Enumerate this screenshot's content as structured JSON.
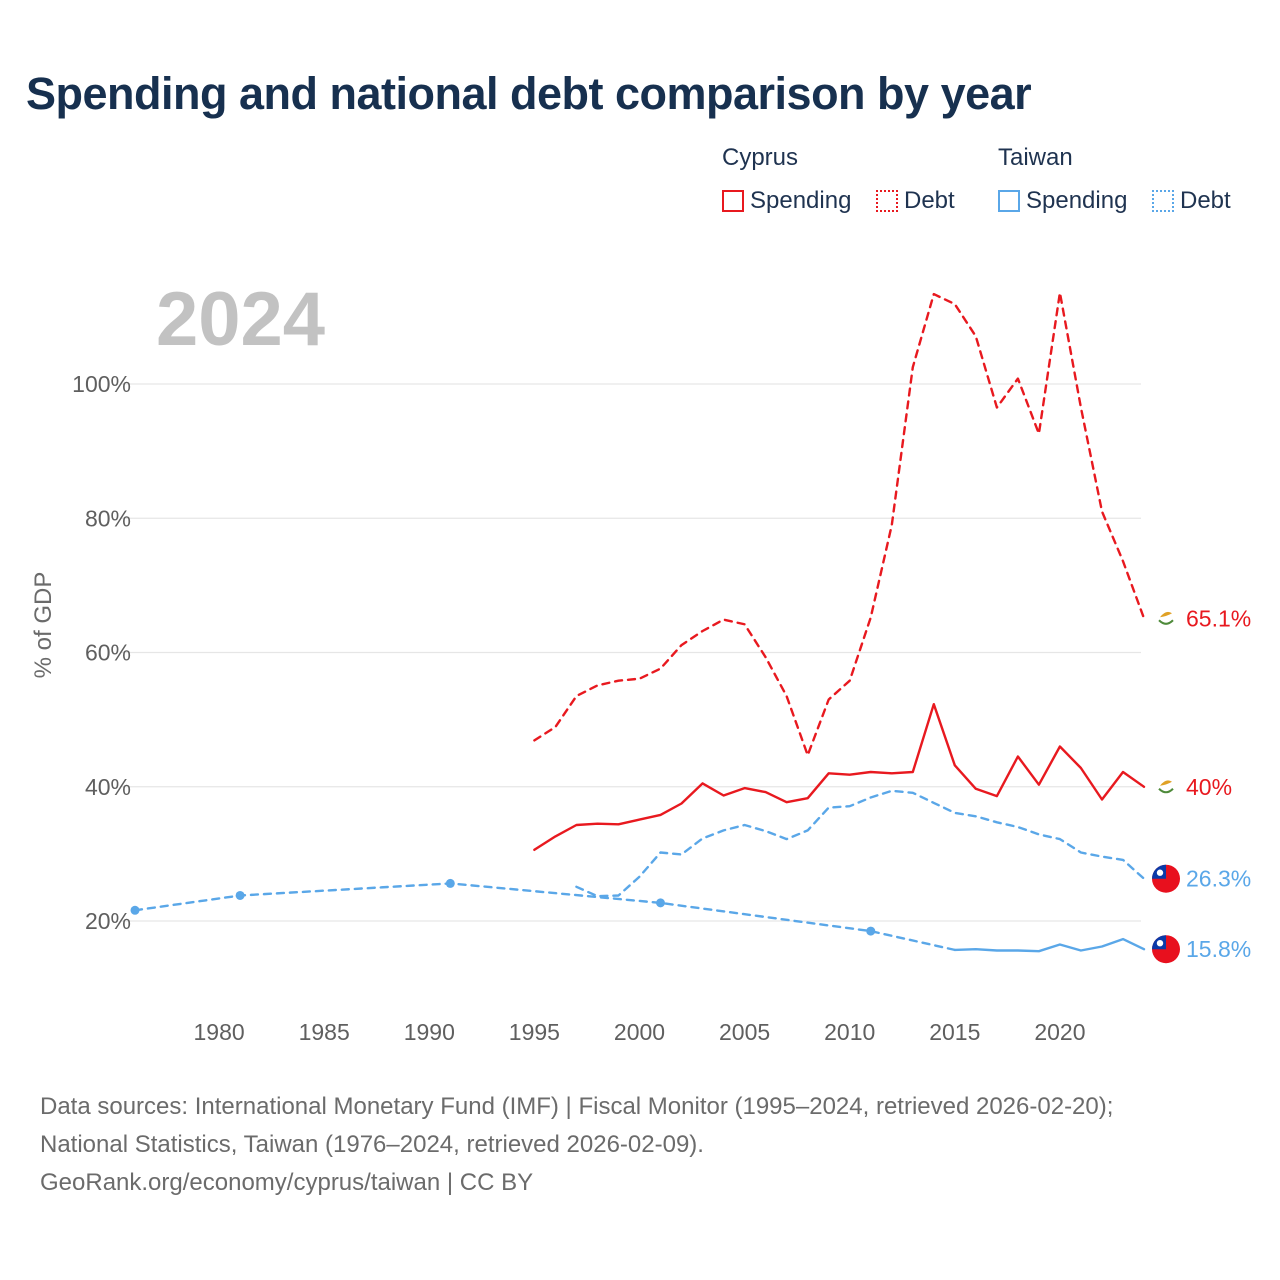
{
  "title": "Spending and national debt comparison by year",
  "year_overlay": "2024",
  "legend": {
    "groups": [
      {
        "name": "Cyprus",
        "items": [
          {
            "label": "Spending",
            "style": "solid"
          },
          {
            "label": "Debt",
            "style": "dotted"
          }
        ],
        "color": "#e8191f"
      },
      {
        "name": "Taiwan",
        "items": [
          {
            "label": "Spending",
            "style": "solid"
          },
          {
            "label": "Debt",
            "style": "dotted"
          }
        ],
        "color": "#5aa7e8"
      }
    ]
  },
  "sources": {
    "line1": "Data sources: International Monetary Fund (IMF) | Fiscal Monitor (1995–2024, retrieved 2026-02-20);",
    "line2": "National Statistics, Taiwan (1976–2024, retrieved 2026-02-09).",
    "line3": "GeoRank.org/economy/cyprus/taiwan | CC BY"
  },
  "chart_data": {
    "type": "line",
    "title": "Spending and national debt comparison by year",
    "xlabel": "",
    "ylabel": "% of GDP",
    "xlim": [
      1976,
      2024
    ],
    "ylim": [
      10,
      115
    ],
    "x_ticks": [
      1980,
      1985,
      1990,
      1995,
      2000,
      2005,
      2010,
      2015,
      2020
    ],
    "y_ticks": [
      20,
      40,
      60,
      80,
      100
    ],
    "y_tick_labels": [
      "20%",
      "40%",
      "60%",
      "80%",
      "100%"
    ],
    "grid": "horizontal",
    "series": [
      {
        "name": "Cyprus Debt",
        "color": "#e8191f",
        "dash": "dashed",
        "x": [
          1995,
          1996,
          1997,
          1998,
          1999,
          2000,
          2001,
          2002,
          2003,
          2004,
          2005,
          2006,
          2007,
          2008,
          2009,
          2010,
          2011,
          2012,
          2013,
          2014,
          2015,
          2016,
          2017,
          2018,
          2019,
          2020,
          2021,
          2022,
          2023,
          2024
        ],
        "y": [
          46.9,
          48.9,
          53.5,
          55.1,
          55.8,
          56.1,
          57.6,
          61.1,
          63.2,
          64.9,
          64.2,
          59.3,
          53.5,
          44.7,
          53.0,
          55.8,
          65.2,
          79.0,
          102.5,
          113.4,
          111.9,
          107.1,
          96.5,
          100.8,
          92.6,
          113.6,
          96.5,
          81.0,
          73.6,
          65.1
        ],
        "end_label": "65.1%",
        "flag": "cyprus"
      },
      {
        "name": "Cyprus Spending",
        "color": "#e8191f",
        "dash": "solid",
        "x": [
          1995,
          1996,
          1997,
          1998,
          1999,
          2000,
          2001,
          2002,
          2003,
          2004,
          2005,
          2006,
          2007,
          2008,
          2009,
          2010,
          2011,
          2012,
          2013,
          2014,
          2015,
          2016,
          2017,
          2018,
          2019,
          2020,
          2021,
          2022,
          2023,
          2024
        ],
        "y": [
          30.6,
          32.6,
          34.3,
          34.5,
          34.4,
          35.1,
          35.8,
          37.5,
          40.5,
          38.7,
          39.8,
          39.2,
          37.7,
          38.3,
          42.0,
          41.8,
          42.2,
          42.0,
          42.2,
          52.3,
          43.2,
          39.7,
          38.6,
          44.5,
          40.3,
          46.0,
          42.8,
          38.1,
          42.2,
          40.0
        ],
        "end_label": "40%",
        "flag": "cyprus"
      },
      {
        "name": "Taiwan Debt",
        "color": "#5aa7e8",
        "dash": "dashed",
        "x": [
          1997,
          1998,
          1999,
          2000,
          2001,
          2002,
          2003,
          2004,
          2005,
          2006,
          2007,
          2008,
          2009,
          2010,
          2011,
          2012,
          2013,
          2014,
          2015,
          2016,
          2017,
          2018,
          2019,
          2020,
          2021,
          2022,
          2023,
          2024
        ],
        "y": [
          25.1,
          23.7,
          23.8,
          26.6,
          30.2,
          29.9,
          32.3,
          33.5,
          34.3,
          33.4,
          32.2,
          33.5,
          36.9,
          37.1,
          38.4,
          39.4,
          39.1,
          37.6,
          36.1,
          35.6,
          34.7,
          34.0,
          32.9,
          32.2,
          30.2,
          29.6,
          29.1,
          26.3
        ],
        "end_label": "26.3%",
        "flag": "taiwan"
      },
      {
        "name": "Taiwan Spending",
        "color": "#5aa7e8",
        "dash": "dashed-to-solid",
        "solid_from": 2015,
        "markers": [
          1976,
          1981,
          1991,
          2001,
          2011
        ],
        "x": [
          1976,
          1981,
          1991,
          2001,
          2011,
          2015,
          2016,
          2017,
          2018,
          2019,
          2020,
          2021,
          2022,
          2023,
          2024
        ],
        "y": [
          21.6,
          23.8,
          25.6,
          22.7,
          18.5,
          15.7,
          15.8,
          15.6,
          15.6,
          15.5,
          16.5,
          15.6,
          16.2,
          17.3,
          15.8
        ],
        "end_label": "15.8%",
        "flag": "taiwan"
      }
    ]
  }
}
